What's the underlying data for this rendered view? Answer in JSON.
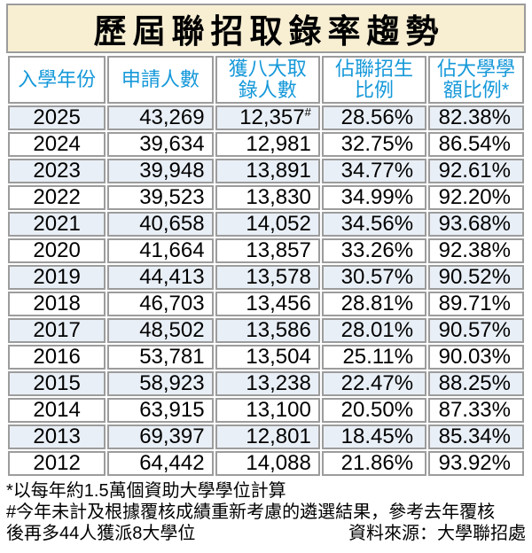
{
  "title": "歷屆聯招取錄率趨勢",
  "colors": {
    "title_bg": "#f8efd3",
    "header_text": "#1598d9",
    "row_alt_bg": "#e9eff6",
    "row_bg": "#ffffff",
    "border": "#9c9c9c",
    "text": "#000000"
  },
  "chart_data": {
    "type": "table",
    "title": "歷屆聯招取錄率趨勢",
    "columns": [
      "入學年份",
      "申請人數",
      "獲八大取\n錄人數",
      "佔聯招生\n比例",
      "佔大學學\n額比例*"
    ],
    "rows": [
      {
        "year": "2025",
        "applicants": "43,269",
        "admitted": "12,357",
        "admitted_footnote_marker": "#",
        "jupas_share": "28.56%",
        "university_places_share": "82.38%"
      },
      {
        "year": "2024",
        "applicants": "39,634",
        "admitted": "12,981",
        "admitted_footnote_marker": "",
        "jupas_share": "32.75%",
        "university_places_share": "86.54%"
      },
      {
        "year": "2023",
        "applicants": "39,948",
        "admitted": "13,891",
        "admitted_footnote_marker": "",
        "jupas_share": "34.77%",
        "university_places_share": "92.61%"
      },
      {
        "year": "2022",
        "applicants": "39,523",
        "admitted": "13,830",
        "admitted_footnote_marker": "",
        "jupas_share": "34.99%",
        "university_places_share": "92.20%"
      },
      {
        "year": "2021",
        "applicants": "40,658",
        "admitted": "14,052",
        "admitted_footnote_marker": "",
        "jupas_share": "34.56%",
        "university_places_share": "93.68%"
      },
      {
        "year": "2020",
        "applicants": "41,664",
        "admitted": "13,857",
        "admitted_footnote_marker": "",
        "jupas_share": "33.26%",
        "university_places_share": "92.38%"
      },
      {
        "year": "2019",
        "applicants": "44,413",
        "admitted": "13,578",
        "admitted_footnote_marker": "",
        "jupas_share": "30.57%",
        "university_places_share": "90.52%"
      },
      {
        "year": "2018",
        "applicants": "46,703",
        "admitted": "13,456",
        "admitted_footnote_marker": "",
        "jupas_share": "28.81%",
        "university_places_share": "89.71%"
      },
      {
        "year": "2017",
        "applicants": "48,502",
        "admitted": "13,586",
        "admitted_footnote_marker": "",
        "jupas_share": "28.01%",
        "university_places_share": "90.57%"
      },
      {
        "year": "2016",
        "applicants": "53,781",
        "admitted": "13,504",
        "admitted_footnote_marker": "",
        "jupas_share": "25.11%",
        "university_places_share": "90.03%"
      },
      {
        "year": "2015",
        "applicants": "58,923",
        "admitted": "13,238",
        "admitted_footnote_marker": "",
        "jupas_share": "22.47%",
        "university_places_share": "88.25%"
      },
      {
        "year": "2014",
        "applicants": "63,915",
        "admitted": "13,100",
        "admitted_footnote_marker": "",
        "jupas_share": "20.50%",
        "university_places_share": "87.33%"
      },
      {
        "year": "2013",
        "applicants": "69,397",
        "admitted": "12,801",
        "admitted_footnote_marker": "",
        "jupas_share": "18.45%",
        "university_places_share": "85.34%"
      },
      {
        "year": "2012",
        "applicants": "64,442",
        "admitted": "14,088",
        "admitted_footnote_marker": "",
        "jupas_share": "21.86%",
        "university_places_share": "93.92%"
      }
    ]
  },
  "footnotes": {
    "asterisk_note": "*以每年約1.5萬個資助大學學位計算",
    "hash_note_line1": "#今年未計及根據覆核成績重新考慮的遴選結果，參考去年覆核",
    "hash_note_line2": "後再多44人獲派8大學位",
    "source": "資料來源：大學聯招處"
  }
}
